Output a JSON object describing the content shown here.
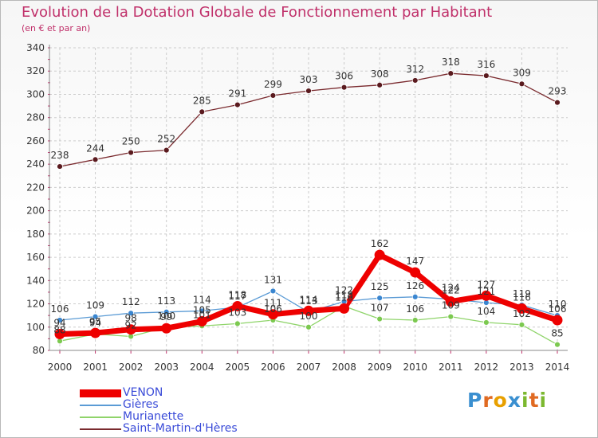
{
  "header": {
    "title": "Evolution de la Dotation Globale de Fonctionnement par Habitant",
    "subtitle": "(en € et par an)"
  },
  "logo": {
    "text": "Proxiti",
    "letters": [
      "P",
      "r",
      "o",
      "x",
      "i",
      "t",
      "i"
    ],
    "colors": [
      "#3a8fd0",
      "#e06a22",
      "#e8a000",
      "#3a8fd0",
      "#7cb830",
      "#e06a22",
      "#7cb830"
    ]
  },
  "colors": {
    "title": "#c0306a",
    "axis_tick": "#c0306a",
    "grid": "#cccccc",
    "legend_text": "#3a4bd8"
  },
  "chart_data": {
    "type": "line",
    "title": "Evolution de la Dotation Globale de Fonctionnement par Habitant",
    "subtitle": "(en € et par an)",
    "xlabel": "",
    "ylabel": "",
    "ylim": [
      80,
      340
    ],
    "yticks": [
      80,
      100,
      120,
      140,
      160,
      180,
      200,
      220,
      240,
      260,
      280,
      300,
      320,
      340
    ],
    "x": [
      "2000",
      "2001",
      "2002",
      "2003",
      "2004",
      "2005",
      "2006",
      "2007",
      "2008",
      "2009",
      "2010",
      "2011",
      "2012",
      "2013",
      "2014"
    ],
    "grid": true,
    "legend_position": "bottom-left",
    "series": [
      {
        "name": "Saint-Martin-d'Hères",
        "color": "#7a2a2e",
        "marker": "#5a1a1e",
        "width": 1.3,
        "values": [
          238,
          244,
          250,
          252,
          285,
          291,
          299,
          303,
          306,
          308,
          312,
          318,
          316,
          309,
          293
        ]
      },
      {
        "name": "Murianette",
        "color": "#8fd46a",
        "marker": "#7cc950",
        "width": 1.3,
        "values": [
          88,
          94,
          92,
          100,
          101,
          103,
          106,
          100,
          118,
          107,
          106,
          109,
          104,
          102,
          85
        ]
      },
      {
        "name": "Gières",
        "color": "#5b9bd5",
        "marker": "#3a86d0",
        "width": 1.3,
        "values": [
          106,
          109,
          112,
          113,
          114,
          117,
          131,
          113,
          122,
          125,
          126,
          124,
          121,
          119,
          110
        ]
      },
      {
        "name": "VENON",
        "color": "#ee0000",
        "marker": "#ee0000",
        "width": 7,
        "values": [
          94,
          95,
          98,
          99,
          105,
          118,
          111,
          114,
          116,
          162,
          147,
          122,
          127,
          116,
          106
        ]
      }
    ],
    "legend_order": [
      "VENON",
      "Gières",
      "Murianette",
      "Saint-Martin-d'Hères"
    ]
  }
}
